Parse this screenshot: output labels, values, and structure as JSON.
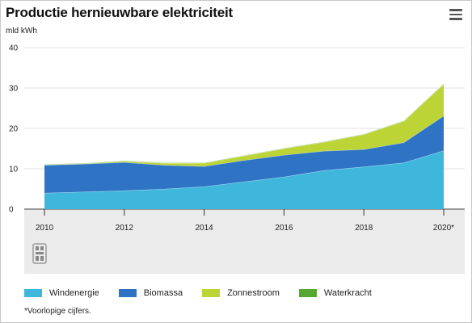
{
  "header": {
    "title": "Productie hernieuwbare elektriciteit",
    "unit": "mld kWh"
  },
  "footnote": "*Voorlopige cijfers.",
  "icons": {
    "menu": "hamburger-menu-icon",
    "logo": "cbs-logo"
  },
  "chart_data": {
    "type": "area",
    "stacked": true,
    "x": [
      2010,
      2011,
      2012,
      2013,
      2014,
      2015,
      2016,
      2017,
      2018,
      2019,
      2020
    ],
    "x_tick_labels": [
      "2010",
      "2012",
      "2014",
      "2016",
      "2018",
      "2020*"
    ],
    "x_tick_values": [
      2010,
      2012,
      2014,
      2016,
      2018,
      2020
    ],
    "ylim": [
      0,
      40
    ],
    "y_ticks": [
      0,
      10,
      20,
      30,
      40
    ],
    "ylabel": "mld kWh",
    "grid": {
      "x": false,
      "y": true
    },
    "legend_position": "bottom",
    "series": [
      {
        "name": "Windenergie",
        "color": "#3fb7dc",
        "values": [
          4.0,
          4.3,
          4.6,
          5.0,
          5.6,
          6.8,
          8.0,
          9.6,
          10.5,
          11.5,
          14.5
        ]
      },
      {
        "name": "Biomassa",
        "color": "#2f73c4",
        "values": [
          6.9,
          6.9,
          7.0,
          5.9,
          5.0,
          5.3,
          5.4,
          4.8,
          4.3,
          5.0,
          8.6
        ]
      },
      {
        "name": "Zonnestroom",
        "color": "#bcd436",
        "values": [
          0.1,
          0.1,
          0.3,
          0.5,
          0.8,
          1.1,
          1.6,
          2.2,
          3.7,
          5.3,
          7.9
        ]
      },
      {
        "name": "Waterkracht",
        "color": "#56a832",
        "values": [
          0.1,
          0.1,
          0.1,
          0.1,
          0.1,
          0.1,
          0.1,
          0.1,
          0.1,
          0.1,
          0.1
        ]
      }
    ]
  }
}
